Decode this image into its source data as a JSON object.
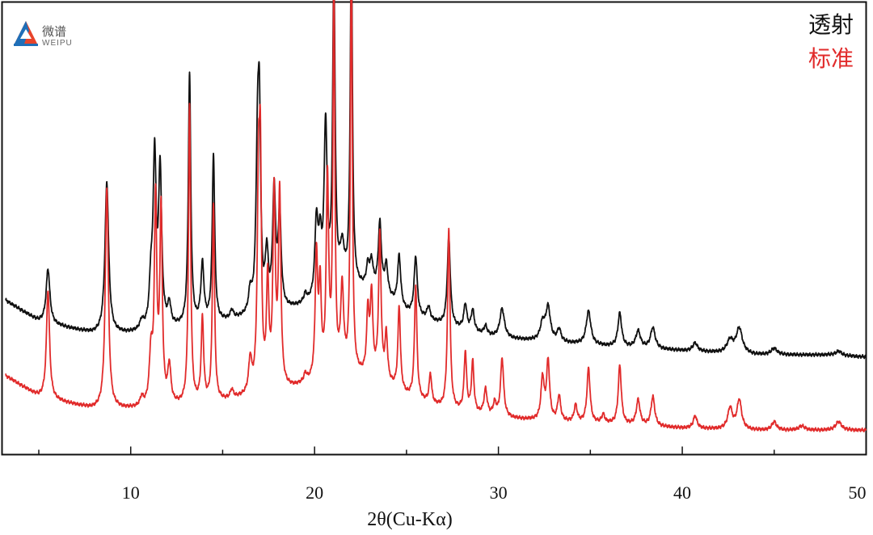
{
  "logo": {
    "cn": "微谱",
    "en": "WEIPU"
  },
  "chart_data": {
    "type": "line",
    "title": "",
    "xlabel": "2θ(Cu-Kα)",
    "ylabel": "",
    "xlim": [
      3,
      50
    ],
    "ylim": [
      0,
      100
    ],
    "xticks": [
      10,
      20,
      30,
      40,
      50
    ],
    "grid": false,
    "legend_placement": "top-right",
    "series": [
      {
        "name": "透射",
        "color": "#111111",
        "baseline": 26,
        "x_start": 3.2,
        "x_end": 50,
        "background": [
          [
            3.2,
            34
          ],
          [
            5,
            29
          ],
          [
            8,
            26
          ],
          [
            10,
            26
          ],
          [
            14,
            28
          ],
          [
            18,
            31
          ],
          [
            20,
            33
          ],
          [
            22,
            37
          ],
          [
            23.5,
            36
          ],
          [
            25,
            31
          ],
          [
            27,
            28
          ],
          [
            30,
            25
          ],
          [
            33,
            24
          ],
          [
            36,
            23
          ],
          [
            40,
            22
          ],
          [
            44,
            21
          ],
          [
            48,
            21
          ],
          [
            50,
            20.5
          ]
        ],
        "peaks": [
          [
            5.5,
            13,
            0.12
          ],
          [
            8.7,
            36,
            0.12
          ],
          [
            10.6,
            2,
            0.12
          ],
          [
            11.1,
            10,
            0.1
          ],
          [
            11.3,
            40,
            0.1
          ],
          [
            11.6,
            37,
            0.1
          ],
          [
            12.1,
            5,
            0.1
          ],
          [
            13.2,
            60,
            0.08
          ],
          [
            13.9,
            14,
            0.1
          ],
          [
            14.5,
            40,
            0.08
          ],
          [
            15.5,
            2,
            0.1
          ],
          [
            16.5,
            5,
            0.1
          ],
          [
            16.9,
            38,
            0.1
          ],
          [
            17.0,
            38,
            0.08
          ],
          [
            17.4,
            13,
            0.1
          ],
          [
            17.8,
            28,
            0.1
          ],
          [
            18.1,
            22,
            0.1
          ],
          [
            19.5,
            2,
            0.1
          ],
          [
            20.1,
            18,
            0.1
          ],
          [
            20.3,
            12,
            0.1
          ],
          [
            20.6,
            40,
            0.1
          ],
          [
            21.05,
            76,
            0.08
          ],
          [
            21.5,
            9,
            0.15
          ],
          [
            22.0,
            83,
            0.07
          ],
          [
            22.9,
            5,
            0.1
          ],
          [
            23.1,
            6,
            0.1
          ],
          [
            23.55,
            16,
            0.1
          ],
          [
            23.9,
            7,
            0.1
          ],
          [
            24.6,
            12,
            0.1
          ],
          [
            25.5,
            14,
            0.1
          ],
          [
            26.2,
            3,
            0.1
          ],
          [
            27.3,
            21,
            0.1
          ],
          [
            28.2,
            6,
            0.1
          ],
          [
            28.6,
            5,
            0.1
          ],
          [
            29.3,
            2,
            0.1
          ],
          [
            30.2,
            7,
            0.15
          ],
          [
            32.4,
            4,
            0.15
          ],
          [
            32.7,
            8,
            0.15
          ],
          [
            33.3,
            3,
            0.12
          ],
          [
            34.9,
            8,
            0.15
          ],
          [
            36.6,
            8,
            0.12
          ],
          [
            37.6,
            4,
            0.15
          ],
          [
            38.4,
            5,
            0.15
          ],
          [
            40.7,
            2,
            0.15
          ],
          [
            42.6,
            3,
            0.2
          ],
          [
            43.1,
            6,
            0.2
          ],
          [
            45.0,
            1.5,
            0.2
          ],
          [
            48.5,
            1,
            0.2
          ]
        ]
      },
      {
        "name": "标准",
        "color": "#e12b2b",
        "baseline": 0,
        "x_start": 3.2,
        "x_end": 50,
        "background": [
          [
            3.2,
            16
          ],
          [
            5,
            11
          ],
          [
            8,
            8
          ],
          [
            10,
            8
          ],
          [
            14,
            9
          ],
          [
            18,
            12
          ],
          [
            20,
            14
          ],
          [
            22,
            16
          ],
          [
            23.5,
            15
          ],
          [
            25,
            11
          ],
          [
            27,
            8
          ],
          [
            30,
            6
          ],
          [
            33,
            5
          ],
          [
            36,
            4.5
          ],
          [
            40,
            3.5
          ],
          [
            44,
            3
          ],
          [
            48,
            3
          ],
          [
            50,
            3
          ]
        ],
        "peaks": [
          [
            5.5,
            26,
            0.1
          ],
          [
            8.7,
            53,
            0.1
          ],
          [
            10.6,
            2,
            0.1
          ],
          [
            11.1,
            12,
            0.1
          ],
          [
            11.35,
            48,
            0.08
          ],
          [
            11.65,
            46,
            0.08
          ],
          [
            12.1,
            9,
            0.1
          ],
          [
            13.2,
            71,
            0.07
          ],
          [
            13.9,
            20,
            0.08
          ],
          [
            14.5,
            47,
            0.07
          ],
          [
            15.5,
            2,
            0.1
          ],
          [
            16.5,
            8,
            0.1
          ],
          [
            16.95,
            46,
            0.08
          ],
          [
            17.05,
            48,
            0.07
          ],
          [
            17.45,
            25,
            0.08
          ],
          [
            17.8,
            46,
            0.08
          ],
          [
            18.1,
            46,
            0.08
          ],
          [
            19.5,
            2,
            0.1
          ],
          [
            20.1,
            29,
            0.08
          ],
          [
            20.3,
            21,
            0.08
          ],
          [
            20.7,
            47,
            0.08
          ],
          [
            21.05,
            95,
            0.06
          ],
          [
            21.5,
            20,
            0.1
          ],
          [
            22.0,
            102,
            0.06
          ],
          [
            22.9,
            15,
            0.08
          ],
          [
            23.1,
            19,
            0.08
          ],
          [
            23.55,
            34,
            0.08
          ],
          [
            23.9,
            11,
            0.08
          ],
          [
            24.6,
            20,
            0.08
          ],
          [
            25.5,
            27,
            0.08
          ],
          [
            26.3,
            7,
            0.08
          ],
          [
            27.3,
            43,
            0.08
          ],
          [
            28.2,
            14,
            0.08
          ],
          [
            28.6,
            12,
            0.08
          ],
          [
            29.3,
            6,
            0.1
          ],
          [
            29.8,
            3,
            0.1
          ],
          [
            30.2,
            14,
            0.1
          ],
          [
            32.4,
            10,
            0.1
          ],
          [
            32.7,
            14,
            0.1
          ],
          [
            33.3,
            6,
            0.1
          ],
          [
            34.2,
            4,
            0.1
          ],
          [
            34.9,
            13,
            0.1
          ],
          [
            35.7,
            2,
            0.1
          ],
          [
            36.6,
            14,
            0.1
          ],
          [
            37.6,
            6,
            0.12
          ],
          [
            38.4,
            7,
            0.12
          ],
          [
            40.7,
            3,
            0.12
          ],
          [
            42.6,
            5,
            0.15
          ],
          [
            43.1,
            7,
            0.15
          ],
          [
            45.0,
            2,
            0.15
          ],
          [
            46.5,
            1,
            0.2
          ],
          [
            48.5,
            2,
            0.2
          ]
        ]
      }
    ]
  }
}
